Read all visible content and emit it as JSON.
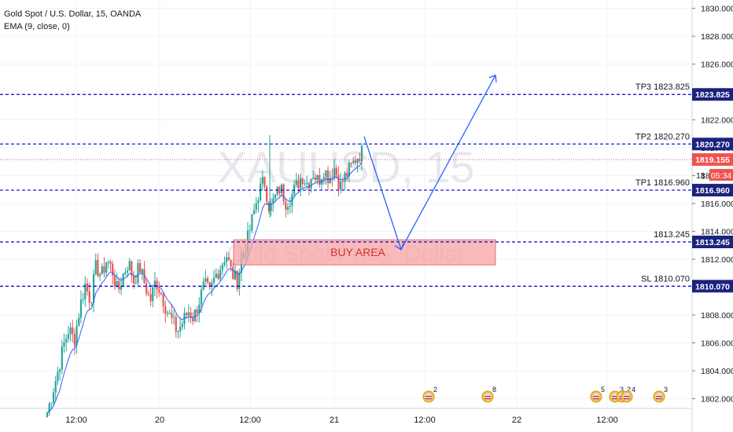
{
  "legend": {
    "symbol_line": "Gold Spot / U.S. Dollar, 15, OANDA",
    "indicator_line": "EMA (9, close, 0)"
  },
  "watermark": {
    "ticker": "XAUUSD, 15",
    "description": "Gold Spot / U.S. Dollar"
  },
  "colors": {
    "up_candle": "#26a69a",
    "down_candle": "#ef5350",
    "level_line": "#0000cc",
    "arrow": "#2962ff",
    "buy_area_fill": "#f5a3a3",
    "buy_area_border": "#e57373",
    "buy_area_text": "#d32f2f",
    "price_label_bg": "#1a237e",
    "last_price_bg": "#ef5350",
    "ema": "#2962ff"
  },
  "price_axis": {
    "ticks": [
      "1830.000",
      "1828.000",
      "1826.000",
      "1824.000",
      "1822.000",
      "1820.000",
      "1818.000",
      "1816.000",
      "1814.000",
      "1812.000",
      "1810.000",
      "1808.000",
      "1806.000",
      "1804.000",
      "1802.000"
    ]
  },
  "time_axis": {
    "ticks": [
      "12:00",
      "20",
      "12:00",
      "21",
      "12:00",
      "22",
      "12:00"
    ]
  },
  "levels": [
    {
      "name": "tp3",
      "price": 1823.825,
      "label": "TP3 1823.825",
      "axis_label": "1823.825"
    },
    {
      "name": "tp2",
      "price": 1820.27,
      "label": "TP2 1820.270",
      "axis_label": "1820.270"
    },
    {
      "name": "tp1",
      "price": 1816.96,
      "label": "TP1 1816.960",
      "axis_label": "1816.960"
    },
    {
      "name": "entry",
      "price": 1813.245,
      "label": "1813.245",
      "axis_label": "1813.245"
    },
    {
      "name": "sl",
      "price": 1810.07,
      "label": "SL 1810.070",
      "axis_label": "1810.070"
    }
  ],
  "last_price": {
    "value": 1819.155,
    "label": "1819.155",
    "countdown": "05:34",
    "partial": "18"
  },
  "buy_area": {
    "label": "BUY AREA",
    "price_high": 1813.4,
    "price_low": 1811.6
  },
  "events": [
    {
      "count": "2"
    },
    {
      "count": "8"
    },
    {
      "count": "5"
    },
    {
      "count": "3"
    },
    {
      "count": "2"
    },
    {
      "count": "4"
    },
    {
      "count": "3"
    }
  ],
  "projection_prices": [
    1820.8,
    1812.7,
    1825.2
  ],
  "chart_data": {
    "type": "candlestick",
    "ylim": [
      1801.3,
      1830.6
    ],
    "close_path": [
      1801.0,
      1802.5,
      1804.0,
      1805.8,
      1807.0,
      1806.2,
      1808.5,
      1810.2,
      1809.0,
      1811.5,
      1810.8,
      1812.0,
      1811.2,
      1809.6,
      1810.9,
      1811.8,
      1810.4,
      1811.5,
      1810.2,
      1809.0,
      1810.5,
      1809.6,
      1808.4,
      1807.6,
      1806.8,
      1807.5,
      1808.3,
      1807.8,
      1809.0,
      1810.2,
      1809.6,
      1810.8,
      1811.5,
      1812.4,
      1811.0,
      1810.4,
      1812.3,
      1813.5,
      1815.2,
      1816.8,
      1817.7,
      1815.6,
      1816.4,
      1817.2,
      1816.1,
      1816.5,
      1817.3,
      1818.0,
      1817.4,
      1818.2,
      1817.6,
      1818.5,
      1817.8,
      1818.6,
      1817.2,
      1818.0,
      1818.6,
      1819.3,
      1819.7
    ]
  }
}
